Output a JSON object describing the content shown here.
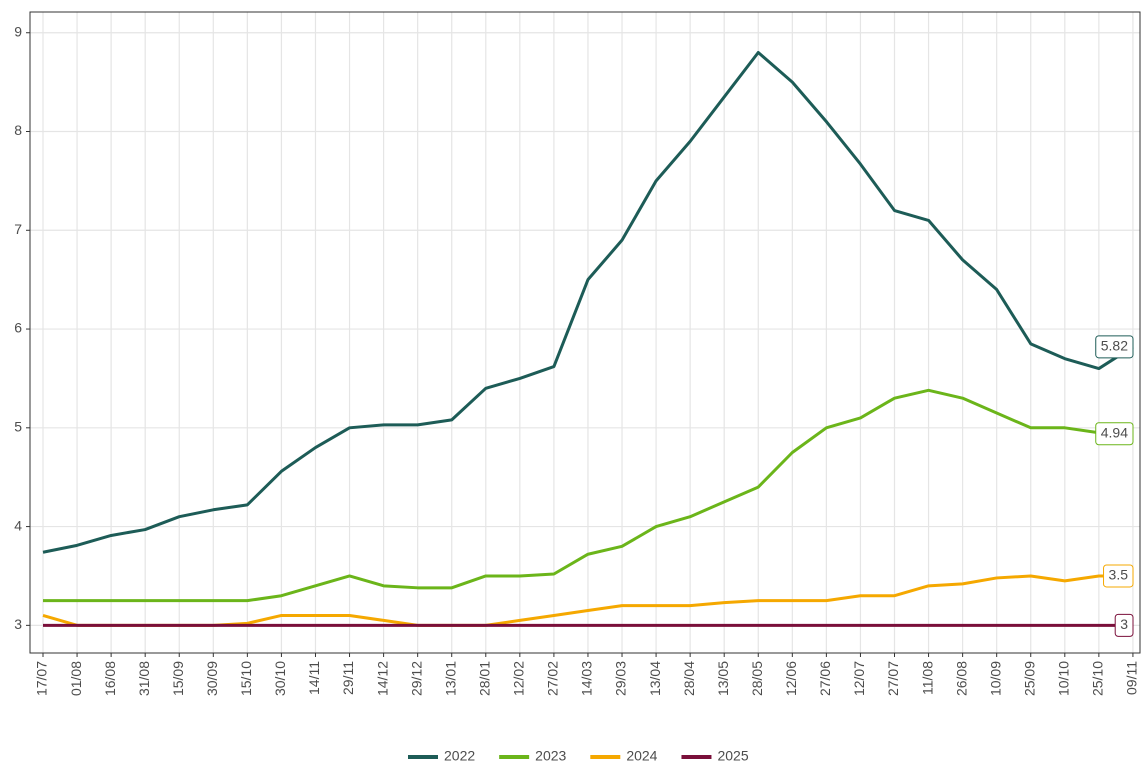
{
  "chart_data": {
    "type": "line",
    "categories": [
      "17/07",
      "01/08",
      "16/08",
      "31/08",
      "15/09",
      "30/09",
      "15/10",
      "30/10",
      "14/11",
      "29/11",
      "14/12",
      "29/12",
      "13/01",
      "28/01",
      "12/02",
      "27/02",
      "14/03",
      "29/03",
      "13/04",
      "28/04",
      "13/05",
      "28/05",
      "12/06",
      "27/06",
      "12/07",
      "27/07",
      "11/08",
      "26/08",
      "10/09",
      "25/09",
      "10/10",
      "25/10",
      "09/11"
    ],
    "series": [
      {
        "name": "2022",
        "color": "#1d5c57",
        "values": [
          3.74,
          3.81,
          3.91,
          3.97,
          4.1,
          4.17,
          4.22,
          4.56,
          4.8,
          5.0,
          5.03,
          5.03,
          5.08,
          5.4,
          5.5,
          5.62,
          6.5,
          6.9,
          7.5,
          7.9,
          8.35,
          8.8,
          8.5,
          8.1,
          7.67,
          7.2,
          7.1,
          6.7,
          6.4,
          5.85,
          5.7,
          5.6,
          5.82
        ]
      },
      {
        "name": "2023",
        "color": "#6bb51a",
        "values": [
          3.25,
          3.25,
          3.25,
          3.25,
          3.25,
          3.25,
          3.25,
          3.3,
          3.4,
          3.5,
          3.4,
          3.38,
          3.38,
          3.5,
          3.5,
          3.52,
          3.72,
          3.8,
          4.0,
          4.1,
          4.25,
          4.4,
          4.75,
          5.0,
          5.1,
          5.3,
          5.38,
          5.3,
          5.15,
          5.0,
          5.0,
          4.95,
          4.94
        ]
      },
      {
        "name": "2024",
        "color": "#f5a800",
        "values": [
          3.1,
          3.0,
          3.0,
          3.0,
          3.0,
          3.0,
          3.02,
          3.1,
          3.1,
          3.1,
          3.05,
          3.0,
          3.0,
          3.0,
          3.05,
          3.1,
          3.15,
          3.2,
          3.2,
          3.2,
          3.23,
          3.25,
          3.25,
          3.25,
          3.3,
          3.3,
          3.4,
          3.42,
          3.48,
          3.5,
          3.45,
          3.5,
          3.5
        ]
      },
      {
        "name": "2025",
        "color": "#7a0f3a",
        "values": [
          3,
          3,
          3,
          3,
          3,
          3,
          3,
          3,
          3,
          3,
          3,
          3,
          3,
          3,
          3,
          3,
          3,
          3,
          3,
          3,
          3,
          3,
          3,
          3,
          3,
          3,
          3,
          3,
          3,
          3,
          3,
          3,
          3
        ]
      }
    ],
    "ylim": [
      2.72,
      9.21
    ],
    "yticks": [
      3,
      4,
      5,
      6,
      7,
      8,
      9
    ],
    "grid": true,
    "legend": "bottom"
  }
}
